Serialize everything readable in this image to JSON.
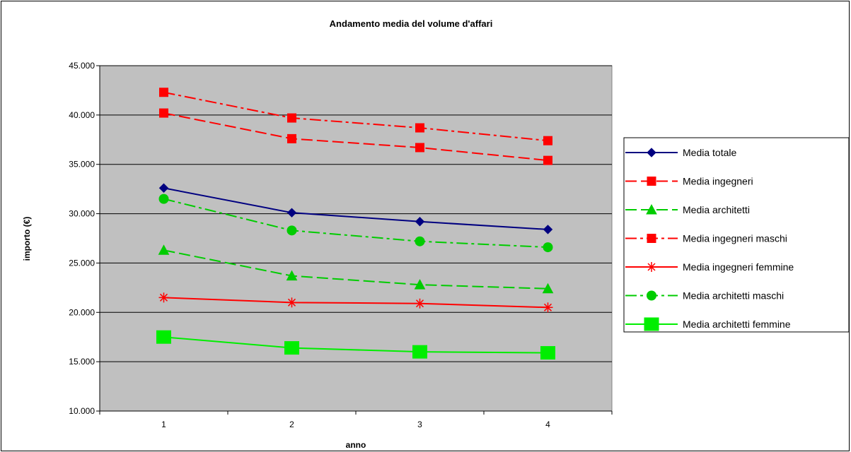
{
  "chart_data": {
    "type": "line",
    "title": "Andamento media del volume d'affari",
    "xlabel": "anno",
    "ylabel": "importo (€)",
    "x": [
      "1",
      "2",
      "3",
      "4"
    ],
    "ylim": [
      10000,
      45000
    ],
    "yticks": [
      "10.000",
      "15.000",
      "20.000",
      "25.000",
      "30.000",
      "35.000",
      "40.000",
      "45.000"
    ],
    "ytick_values": [
      10000,
      15000,
      20000,
      25000,
      30000,
      35000,
      40000,
      45000
    ],
    "grid": true,
    "legend_position": "right",
    "plot_background": "#c0c0c0",
    "series": [
      {
        "name": "Media totale",
        "values": [
          32600,
          30100,
          29200,
          28400
        ],
        "color": "#000080",
        "dash": "solid",
        "marker": "diamond"
      },
      {
        "name": "Media ingegneri",
        "values": [
          40200,
          37600,
          36700,
          35400
        ],
        "color": "#ff0000",
        "dash": "long-dash",
        "marker": "square"
      },
      {
        "name": "Media architetti",
        "values": [
          26300,
          23700,
          22800,
          22400
        ],
        "color": "#00cc00",
        "dash": "long-dash",
        "marker": "triangle"
      },
      {
        "name": "Media ingegneri maschi",
        "values": [
          42300,
          39700,
          38700,
          37400
        ],
        "color": "#ff0000",
        "dash": "dash-dot",
        "marker": "square"
      },
      {
        "name": "Media ingegneri femmine",
        "values": [
          21500,
          21000,
          20900,
          20500
        ],
        "color": "#ff0000",
        "dash": "solid",
        "marker": "star"
      },
      {
        "name": "Media architetti maschi",
        "values": [
          31500,
          28300,
          27200,
          26600
        ],
        "color": "#00cc00",
        "dash": "dash-dot",
        "marker": "circle"
      },
      {
        "name": "Media architetti femmine",
        "values": [
          17500,
          16400,
          16000,
          15900
        ],
        "color": "#00ee00",
        "dash": "solid",
        "marker": "big-square"
      }
    ]
  }
}
